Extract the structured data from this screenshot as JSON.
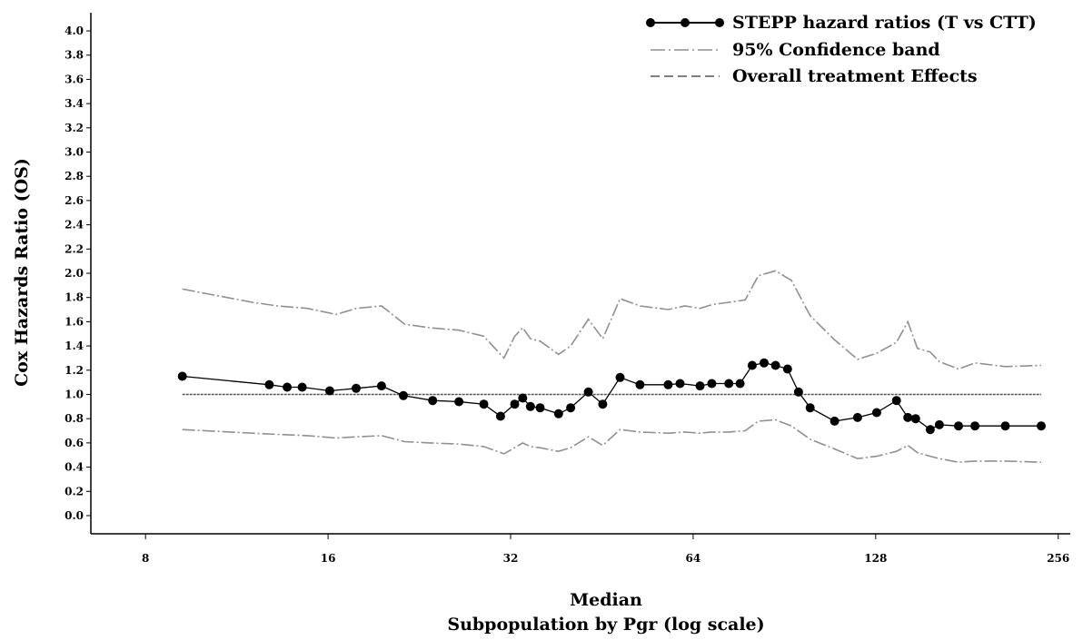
{
  "chart_data": {
    "type": "line",
    "xlabel_lines": [
      "Median",
      "Subpopulation by Pgr (log scale)"
    ],
    "ylabel": "Cox Hazards Ratio (OS)",
    "x_scale": "log2",
    "xlim": [
      6.5,
      268
    ],
    "ylim": [
      -0.15,
      4.15
    ],
    "x_ticks": [
      8,
      16,
      32,
      64,
      128,
      256
    ],
    "y_ticks": [
      0.0,
      0.2,
      0.4,
      0.6,
      0.8,
      1.0,
      1.2,
      1.4,
      1.6,
      1.8,
      2.0,
      2.2,
      2.4,
      2.6,
      2.8,
      3.0,
      3.2,
      3.4,
      3.6,
      3.8,
      4.0
    ],
    "y_tick_labels": [
      "0.0",
      "0.2",
      "0.4",
      "0.6",
      "0.8",
      "1.0",
      "1.2",
      "1.4",
      "1.6",
      "1.8",
      "2.0",
      "2.2",
      "2.4",
      "2.6",
      "2.8",
      "3.0",
      "3.2",
      "3.4",
      "3.6",
      "3.8",
      "4.0"
    ],
    "legend_position": "top-right",
    "legend": [
      {
        "label": "STEPP hazard ratios (T vs CTT)",
        "style": "line-dots"
      },
      {
        "label": "95% Confidence band",
        "style": "dash-dot"
      },
      {
        "label": "Overall treatment Effects",
        "style": "dashed"
      }
    ],
    "overall_effect": 1.0,
    "x_range_overall": [
      9.2,
      240
    ],
    "series": [
      {
        "name": "STEPP hazard ratios (T vs CTT)",
        "x": [
          9.2,
          12.8,
          13.7,
          14.5,
          16.1,
          17.8,
          19.6,
          21.3,
          23.8,
          26.3,
          28.9,
          30.8,
          32.5,
          33.5,
          34.5,
          35.8,
          38.4,
          40.2,
          43.0,
          45.4,
          48.5,
          52.3,
          58.2,
          60.9,
          65.7,
          68.7,
          73.3,
          76.5,
          80.1,
          83.8,
          87.5,
          91.6,
          95.5,
          99.8,
          109.5,
          119.5,
          128.5,
          138.5,
          144.6,
          149.0,
          157.5,
          163.0,
          175.3,
          186.6,
          209.4,
          240.0
        ],
        "y": [
          1.15,
          1.08,
          1.06,
          1.06,
          1.03,
          1.05,
          1.07,
          0.99,
          0.95,
          0.94,
          0.92,
          0.82,
          0.92,
          0.97,
          0.9,
          0.89,
          0.84,
          0.89,
          1.02,
          0.92,
          1.14,
          1.08,
          1.08,
          1.09,
          1.07,
          1.09,
          1.09,
          1.09,
          1.24,
          1.26,
          1.24,
          1.21,
          1.02,
          0.89,
          0.78,
          0.81,
          0.85,
          0.95,
          0.81,
          0.8,
          0.71,
          0.75,
          0.74,
          0.74,
          0.74,
          0.74
        ],
        "color": "#000000"
      },
      {
        "name": "95% Confidence band",
        "x": [
          9.2,
          12.0,
          13.2,
          14.8,
          16.5,
          17.8,
          19.6,
          21.4,
          23.6,
          26.3,
          28.9,
          31.2,
          32.5,
          33.5,
          34.5,
          35.8,
          38.4,
          40.2,
          43.0,
          45.4,
          48.5,
          52.3,
          58.2,
          62.0,
          65.7,
          68.7,
          73.3,
          78.0,
          82.0,
          87.5,
          93.0,
          99.8,
          109.5,
          119.5,
          128.5,
          138.5,
          144.6,
          150.0,
          157.5,
          163.0,
          175.3,
          186.6,
          209.4,
          240.0
        ],
        "y": [
          1.87,
          1.76,
          1.73,
          1.71,
          1.66,
          1.71,
          1.73,
          1.58,
          1.55,
          1.53,
          1.48,
          1.3,
          1.48,
          1.55,
          1.46,
          1.44,
          1.33,
          1.4,
          1.62,
          1.46,
          1.79,
          1.73,
          1.7,
          1.73,
          1.71,
          1.74,
          1.76,
          1.78,
          1.98,
          2.02,
          1.94,
          1.65,
          1.45,
          1.29,
          1.34,
          1.43,
          1.6,
          1.38,
          1.35,
          1.27,
          1.21,
          1.26,
          1.23,
          1.24
        ],
        "color": "#909090"
      },
      {
        "name": "95% Confidence band (lower)",
        "x": [
          9.2,
          12.0,
          13.2,
          14.8,
          16.5,
          17.8,
          19.6,
          21.4,
          23.6,
          26.3,
          28.9,
          31.2,
          32.5,
          33.5,
          34.5,
          35.8,
          38.4,
          40.2,
          43.0,
          45.4,
          48.5,
          52.3,
          58.2,
          62.0,
          65.7,
          68.7,
          73.3,
          78.0,
          82.0,
          87.5,
          93.0,
          99.8,
          109.5,
          119.5,
          128.5,
          138.5,
          144.6,
          150.0,
          157.5,
          163.0,
          175.3,
          186.6,
          209.4,
          240.0
        ],
        "y": [
          0.71,
          0.68,
          0.67,
          0.66,
          0.64,
          0.65,
          0.66,
          0.61,
          0.6,
          0.59,
          0.57,
          0.51,
          0.56,
          0.6,
          0.57,
          0.56,
          0.53,
          0.56,
          0.65,
          0.58,
          0.71,
          0.69,
          0.68,
          0.69,
          0.68,
          0.69,
          0.69,
          0.7,
          0.78,
          0.79,
          0.74,
          0.63,
          0.55,
          0.47,
          0.49,
          0.53,
          0.58,
          0.52,
          0.49,
          0.47,
          0.44,
          0.45,
          0.45,
          0.44
        ],
        "color": "#909090"
      }
    ]
  }
}
